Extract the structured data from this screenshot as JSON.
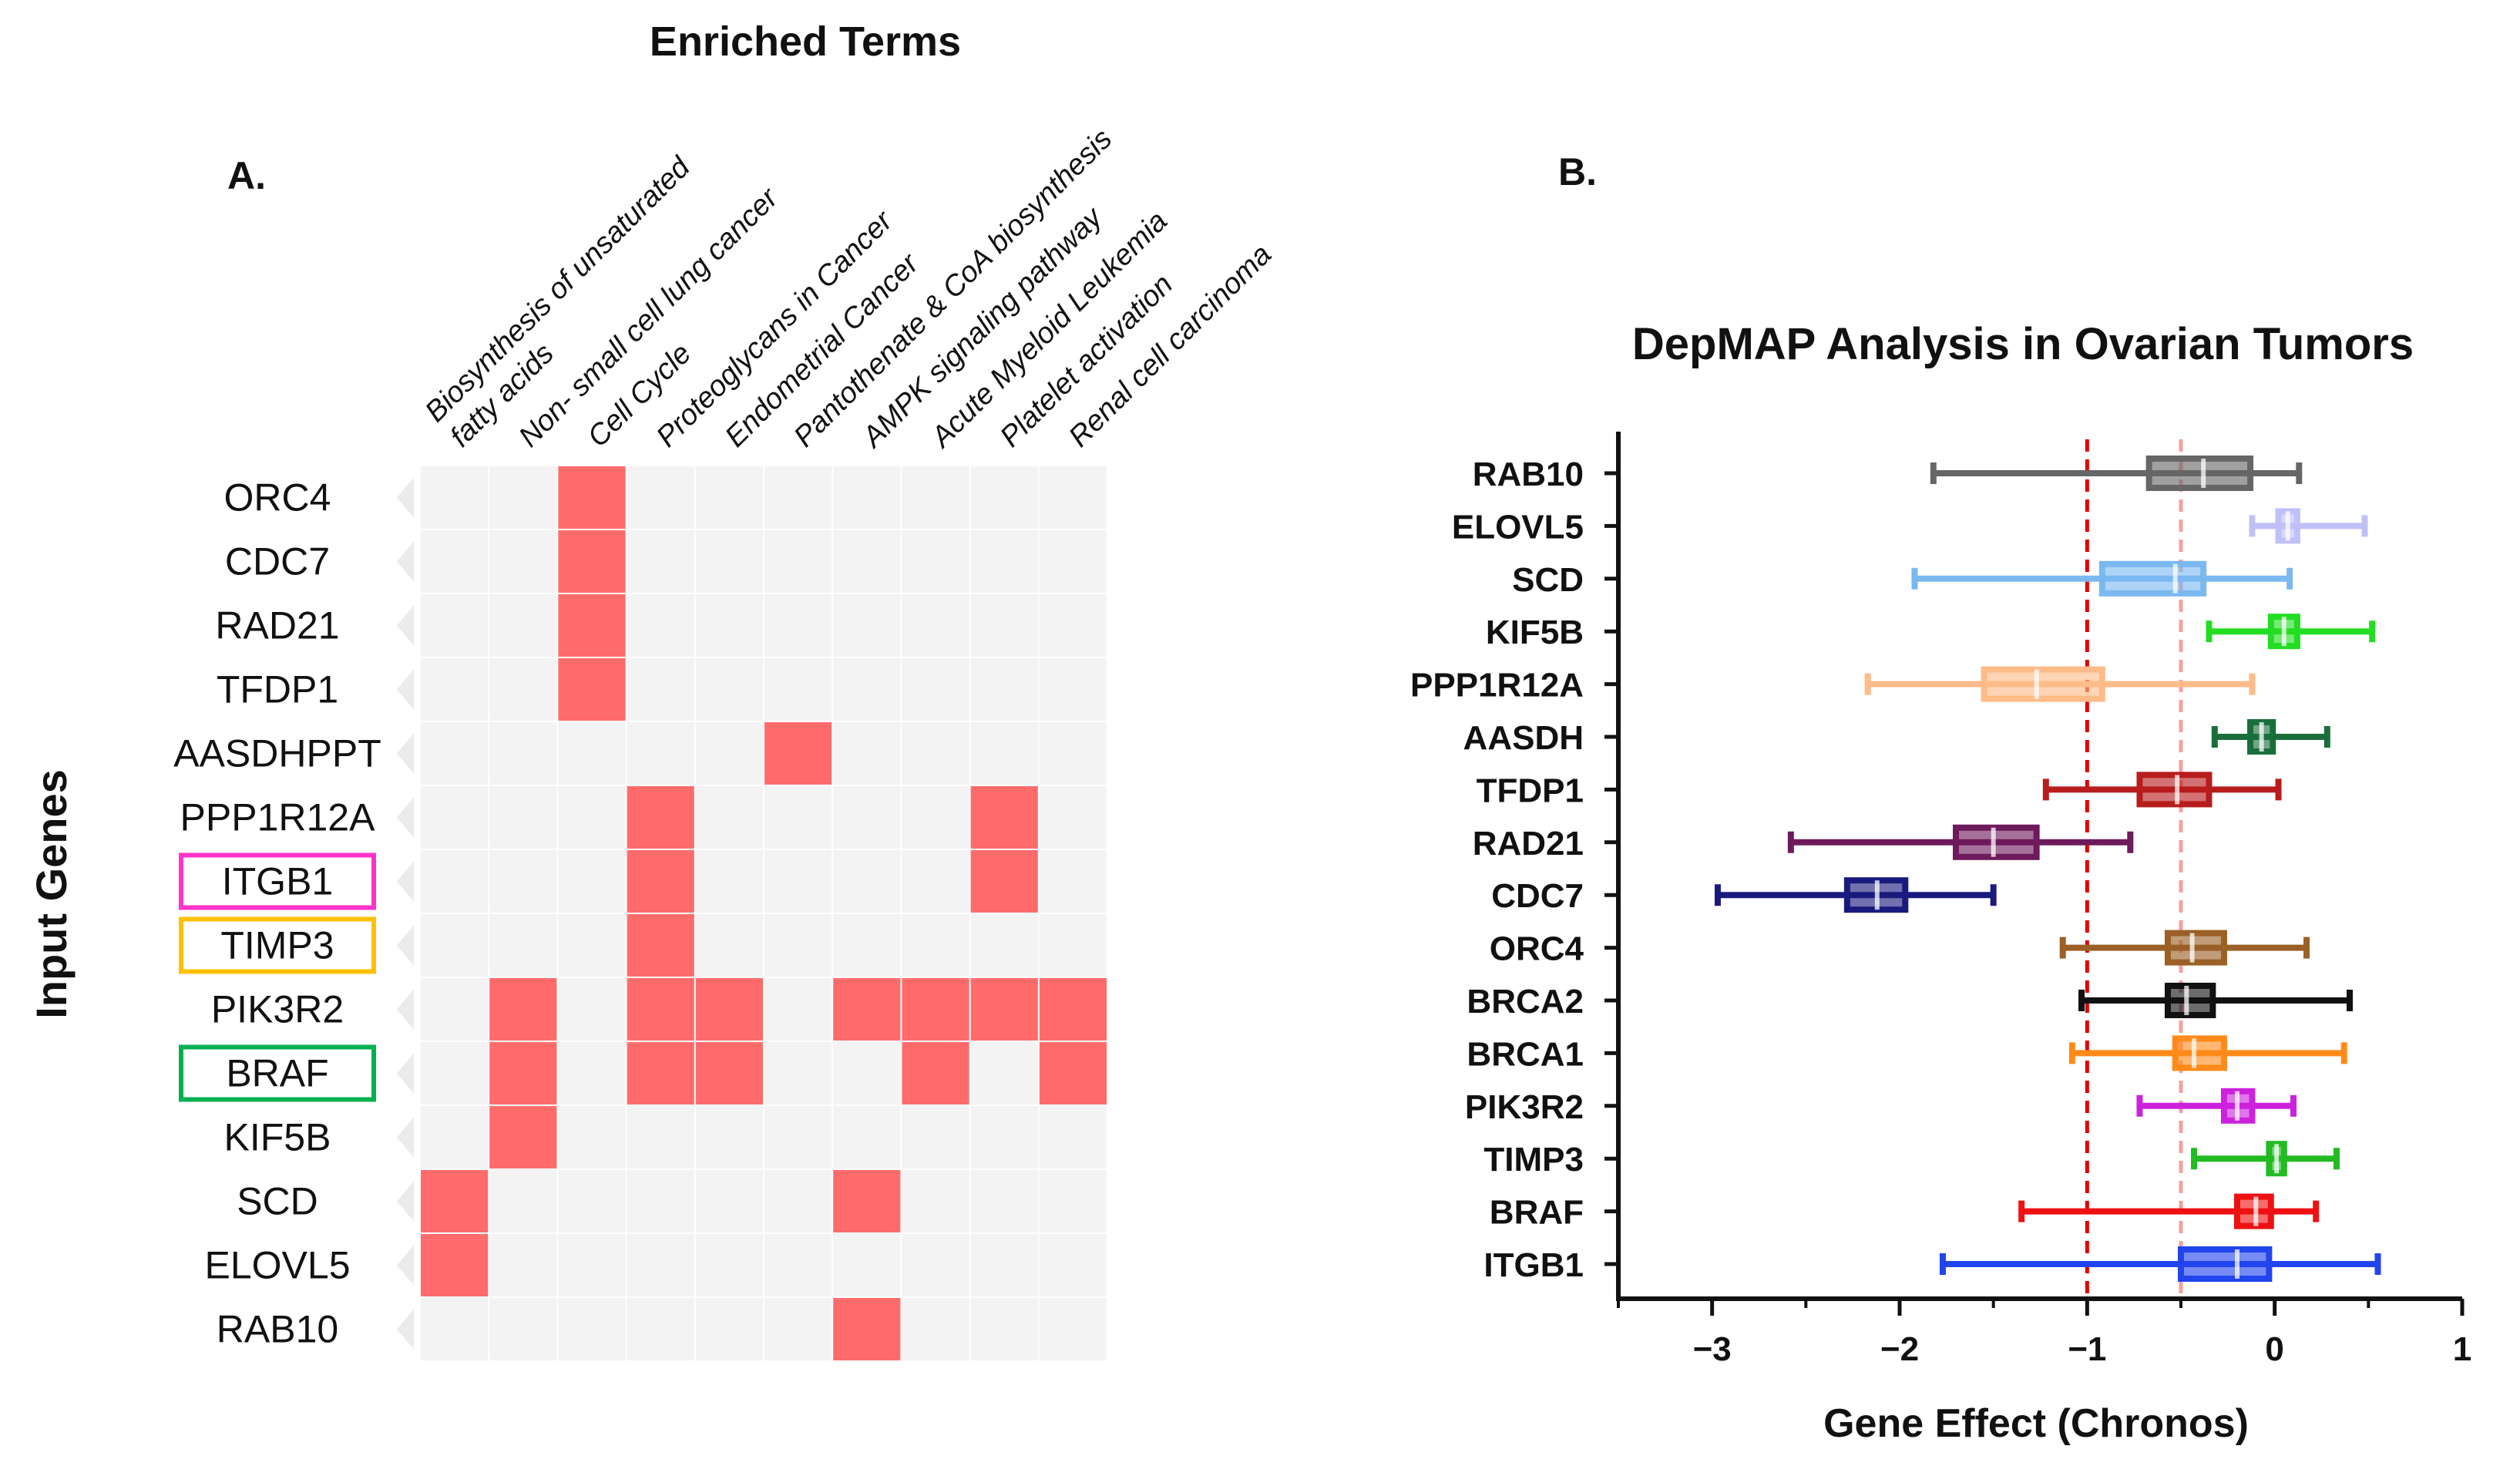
{
  "chart_data": [
    {
      "type": "heatmap",
      "panel_label": "A.",
      "title": "Enriched Terms",
      "ylabel": "Input Genes",
      "columns": [
        "Biosynthesis of unsaturated fatty acids",
        "Non- small cell lung cancer",
        "Cell Cycle",
        "Proteoglycans in Cancer",
        "Endometrial Cancer",
        "Pantothenate & CoA biosynthesis",
        "AMPK signaling pathway",
        "Acute Myeloid Leukemia",
        "Platelet activation",
        "Renal cell carcinoma"
      ],
      "column_label_lines": [
        [
          "Biosynthesis of unsaturated",
          "fatty acids"
        ],
        [
          "Non- small cell lung cancer"
        ],
        [
          "Cell Cycle"
        ],
        [
          "Proteoglycans in Cancer"
        ],
        [
          "Endometrial Cancer"
        ],
        [
          "Pantothenate & CoA biosynthesis"
        ],
        [
          "AMPK signaling pathway"
        ],
        [
          "Acute Myeloid Leukemia"
        ],
        [
          "Platelet activation"
        ],
        [
          "Renal cell carcinoma"
        ]
      ],
      "rows": [
        "ORC4",
        "CDC7",
        "RAD21",
        "TFDP1",
        "AASDHPPT",
        "PPP1R12A",
        "ITGB1",
        "TIMP3",
        "PIK3R2",
        "BRAF",
        "KIF5B",
        "SCD",
        "ELOVL5",
        "RAB10"
      ],
      "matrix": [
        [
          0,
          0,
          1,
          0,
          0,
          0,
          0,
          0,
          0,
          0
        ],
        [
          0,
          0,
          1,
          0,
          0,
          0,
          0,
          0,
          0,
          0
        ],
        [
          0,
          0,
          1,
          0,
          0,
          0,
          0,
          0,
          0,
          0
        ],
        [
          0,
          0,
          1,
          0,
          0,
          0,
          0,
          0,
          0,
          0
        ],
        [
          0,
          0,
          0,
          0,
          0,
          1,
          0,
          0,
          0,
          0
        ],
        [
          0,
          0,
          0,
          1,
          0,
          0,
          0,
          0,
          1,
          0
        ],
        [
          0,
          0,
          0,
          1,
          0,
          0,
          0,
          0,
          1,
          0
        ],
        [
          0,
          0,
          0,
          1,
          0,
          0,
          0,
          0,
          0,
          0
        ],
        [
          0,
          1,
          0,
          1,
          1,
          0,
          1,
          1,
          1,
          1
        ],
        [
          0,
          1,
          0,
          1,
          1,
          0,
          0,
          1,
          0,
          1
        ],
        [
          0,
          1,
          0,
          0,
          0,
          0,
          0,
          0,
          0,
          0
        ],
        [
          1,
          0,
          0,
          0,
          0,
          0,
          1,
          0,
          0,
          0
        ],
        [
          1,
          0,
          0,
          0,
          0,
          0,
          0,
          0,
          0,
          0
        ],
        [
          0,
          0,
          0,
          0,
          0,
          0,
          1,
          0,
          0,
          0
        ]
      ],
      "highlighted_rows": [
        {
          "gene": "ITGB1",
          "color": "#ff33cc"
        },
        {
          "gene": "TIMP3",
          "color": "#ffc000"
        },
        {
          "gene": "BRAF",
          "color": "#00b050"
        }
      ],
      "colors": {
        "hit": "#ff6b6b",
        "background": "#f3f3f3"
      }
    },
    {
      "type": "boxplot",
      "panel_label": "B.",
      "title": "DepMAP Analysis in Ovarian Tumors",
      "xlabel": "Gene Effect (Chronos)",
      "xlim": [
        -3.5,
        1
      ],
      "xticks": [
        -3,
        -2,
        -1,
        0,
        1
      ],
      "xtick_labels": [
        "−3",
        "−2",
        "−1",
        "0",
        "1"
      ],
      "reference_lines": [
        {
          "x": -1,
          "color": "#e00000"
        },
        {
          "x": -0.5,
          "color": "#f4a0a0"
        }
      ],
      "series": [
        {
          "name": "RAB10",
          "min": -1.82,
          "q1": -0.67,
          "median": -0.38,
          "q3": -0.13,
          "max": 0.13,
          "color": "#666666"
        },
        {
          "name": "ELOVL5",
          "min": -0.12,
          "q1": 0.02,
          "median": 0.07,
          "q3": 0.12,
          "max": 0.48,
          "color": "#c0c0f8"
        },
        {
          "name": "SCD",
          "min": -1.92,
          "q1": -0.92,
          "median": -0.53,
          "q3": -0.38,
          "max": 0.08,
          "color": "#7ab8f0"
        },
        {
          "name": "KIF5B",
          "min": -0.35,
          "q1": -0.02,
          "median": 0.05,
          "q3": 0.12,
          "max": 0.52,
          "color": "#22dd22"
        },
        {
          "name": "PPP1R12A",
          "min": -2.17,
          "q1": -1.55,
          "median": -1.27,
          "q3": -0.92,
          "max": -0.12,
          "color": "#ffbb88"
        },
        {
          "name": "AASDH",
          "min": -0.32,
          "q1": -0.13,
          "median": -0.07,
          "q3": -0.01,
          "max": 0.28,
          "color": "#1a6e3c"
        },
        {
          "name": "TFDP1",
          "min": -1.22,
          "q1": -0.72,
          "median": -0.52,
          "q3": -0.35,
          "max": 0.02,
          "color": "#b81c1c"
        },
        {
          "name": "RAD21",
          "min": -2.58,
          "q1": -1.7,
          "median": -1.5,
          "q3": -1.27,
          "max": -0.77,
          "color": "#6e1a5c"
        },
        {
          "name": "CDC7",
          "min": -2.97,
          "q1": -2.28,
          "median": -2.12,
          "q3": -1.97,
          "max": -1.5,
          "color": "#1a1a7e"
        },
        {
          "name": "ORC4",
          "min": -1.13,
          "q1": -0.57,
          "median": -0.44,
          "q3": -0.27,
          "max": 0.17,
          "color": "#9a6026"
        },
        {
          "name": "BRCA2",
          "min": -1.03,
          "q1": -0.57,
          "median": -0.47,
          "q3": -0.33,
          "max": 0.4,
          "color": "#111111"
        },
        {
          "name": "BRCA1",
          "min": -1.08,
          "q1": -0.53,
          "median": -0.43,
          "q3": -0.27,
          "max": 0.37,
          "color": "#ff8a1a"
        },
        {
          "name": "PIK3R2",
          "min": -0.72,
          "q1": -0.27,
          "median": -0.2,
          "q3": -0.12,
          "max": 0.1,
          "color": "#cc22dd"
        },
        {
          "name": "TIMP3",
          "min": -0.43,
          "q1": -0.03,
          "median": 0.01,
          "q3": 0.05,
          "max": 0.33,
          "color": "#22bb22"
        },
        {
          "name": "BRAF",
          "min": -1.35,
          "q1": -0.2,
          "median": -0.1,
          "q3": -0.02,
          "max": 0.22,
          "color": "#ee1111"
        },
        {
          "name": "ITGB1",
          "min": -1.77,
          "q1": -0.5,
          "median": -0.2,
          "q3": -0.03,
          "max": 0.55,
          "color": "#2244ee"
        }
      ]
    }
  ]
}
